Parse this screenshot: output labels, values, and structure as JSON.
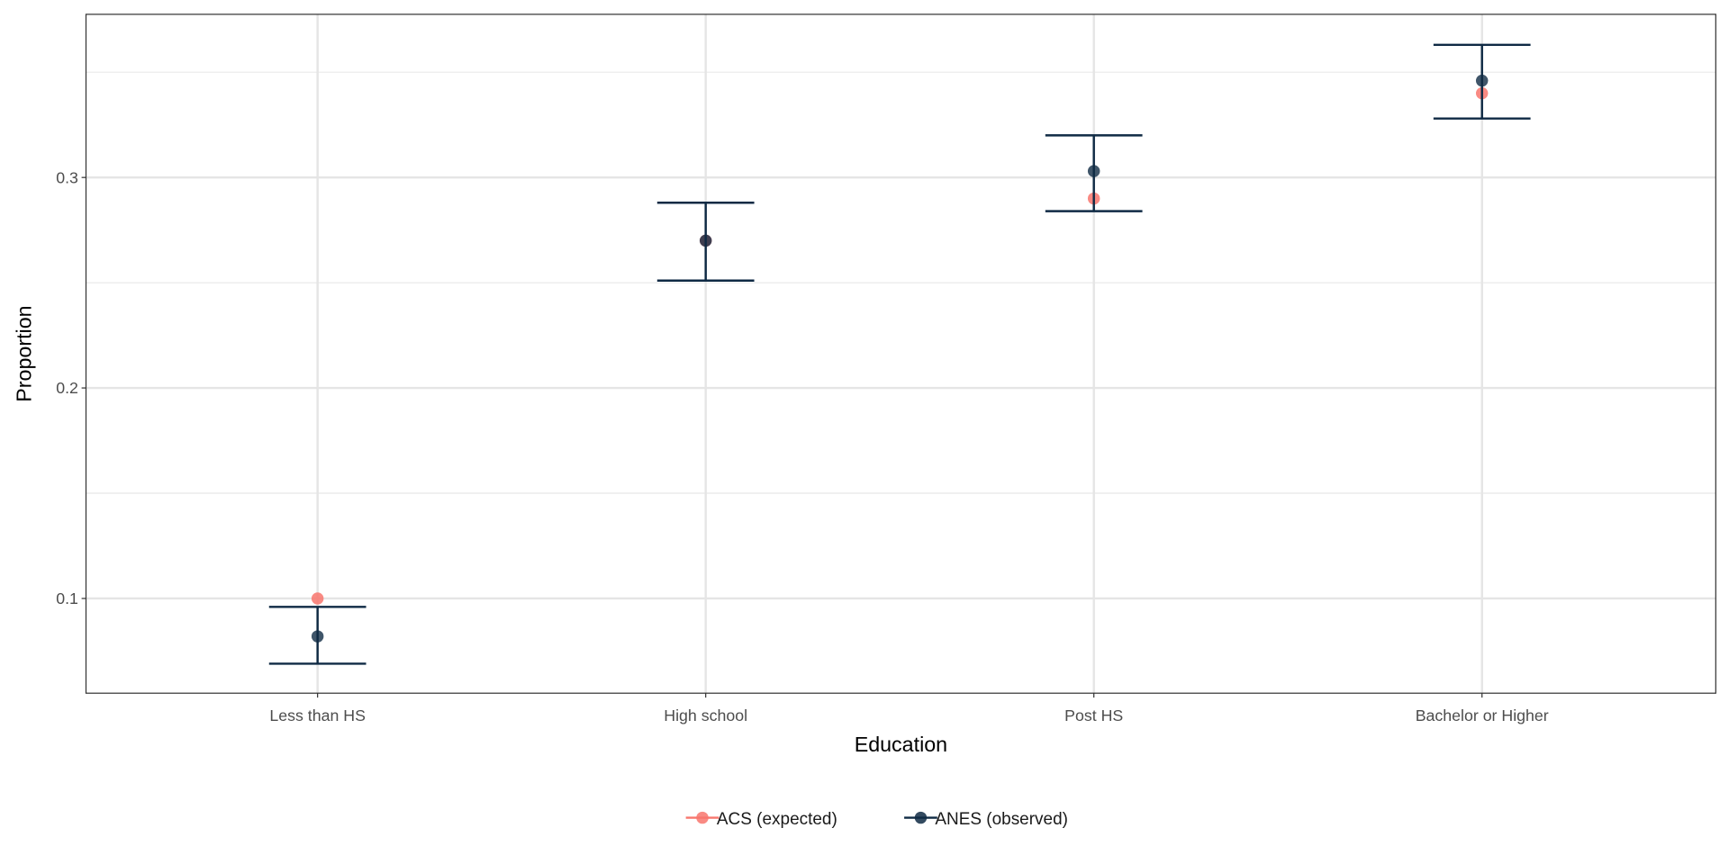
{
  "chart_data": {
    "type": "scatter",
    "title": "",
    "xlabel": "Education",
    "ylabel": "Proportion",
    "categories": [
      "Less than HS",
      "High school",
      "Post HS",
      "Bachelor or Higher"
    ],
    "yticks": [
      "0.1",
      "0.2",
      "0.3"
    ],
    "ylim": [
      0.055,
      0.3775
    ],
    "grid": true,
    "legend_position": "bottom",
    "series": [
      {
        "name": "ACS (expected)",
        "color": "#F8766D",
        "values": [
          0.1,
          0.27,
          0.29,
          0.34
        ]
      },
      {
        "name": "ANES (observed)",
        "color": "#0F2A44",
        "values": [
          0.082,
          0.27,
          0.303,
          0.346
        ],
        "error_low": [
          0.069,
          0.251,
          0.284,
          0.328
        ],
        "error_high": [
          0.096,
          0.288,
          0.32,
          0.363
        ]
      }
    ]
  }
}
